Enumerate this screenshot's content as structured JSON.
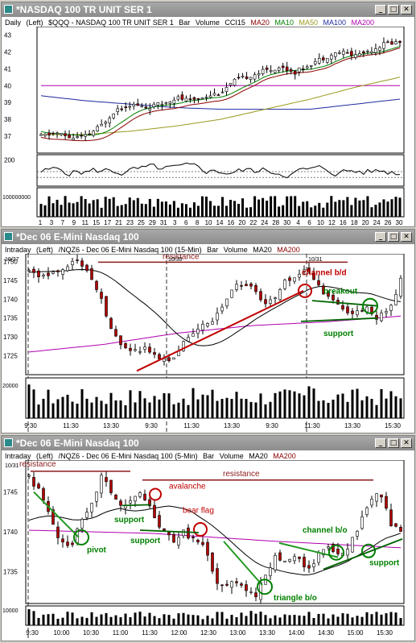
{
  "colors": {
    "up": "#ffffff",
    "down": "#b00000",
    "wick": "#000000",
    "ma20": "#8b0000",
    "ma10": "#008000",
    "ma50": "#9a9a1e",
    "ma100": "#1e2aa0",
    "ma200": "#b000b0",
    "ann_red": "#c00000",
    "ann_green": "#008000",
    "ann_dark": "#8b1a1a"
  },
  "windows": [
    {
      "title": "*NASDAQ 100 TR UNIT SER 1",
      "header": {
        "period": "Daily",
        "axis": "(Left)",
        "symbol": "$QQQ - NASDAQ 100 TR UNIT SER 1",
        "chart": "Bar",
        "ind1": "Volume",
        "ind2": "CCI15",
        "ma20": "MA20",
        "ma10": "MA10",
        "ma50": "MA50",
        "ma100": "MA100",
        "ma200": "MA200"
      }
    },
    {
      "title": "*Dec 06  E-Mini Nasdaq 100",
      "header": {
        "period": "Intraday",
        "axis": "(Left)",
        "symbol": "/NQZ6 - Dec 06  E-Mini Nasdaq 100 (15-Min)",
        "chart": "Bar",
        "ind1": "Volume",
        "ma20": "MA20",
        "ma200": "MA200"
      }
    },
    {
      "title": "*Dec 06  E-Mini Nasdaq 100",
      "header": {
        "period": "Intraday",
        "axis": "(Left)",
        "symbol": "/NQZ6 - Dec 06  E-Mini Nasdaq 100 (5-Min)",
        "chart": "Bar",
        "ind1": "Volume",
        "ma20": "MA20",
        "ma200": "MA200"
      }
    }
  ],
  "chart_data": [
    {
      "type": "candlestick",
      "panel": "daily-price",
      "ylim": [
        36,
        43.5
      ],
      "yticks": [
        "43",
        "42",
        "41",
        "40",
        "39",
        "38",
        "37"
      ],
      "xticks": [
        "1",
        "3",
        "7",
        "9",
        "11",
        "15",
        "17",
        "21",
        "23",
        "25",
        "29",
        "31",
        "3",
        "6",
        "8",
        "10",
        "14",
        "16",
        "20",
        "22",
        "24",
        "28",
        "30",
        "4",
        "6",
        "10",
        "12",
        "16",
        "18",
        "20",
        "24",
        "26",
        "30"
      ],
      "series": [
        "MA20",
        "MA10",
        "MA50",
        "MA100",
        "MA200"
      ]
    },
    {
      "type": "line",
      "panel": "daily-cci",
      "yticks": [
        "200"
      ]
    },
    {
      "type": "bar",
      "panel": "daily-volume",
      "yticks": [
        "100000000"
      ]
    },
    {
      "type": "candlestick",
      "panel": "15min-price",
      "ylim": [
        1720,
        1752
      ],
      "yticks": [
        "1750",
        "1745",
        "1740",
        "1735",
        "1730",
        "1725"
      ],
      "xticks": [
        "9:30",
        "11:30",
        "13:30",
        "9:30",
        "11:30",
        "13:30",
        "9:30",
        "11:30",
        "13:30",
        "15:30"
      ],
      "date_labels": [
        "10/27",
        "10/30",
        "10/31"
      ],
      "series": [
        "MA20",
        "MA200"
      ],
      "annotations": [
        "resistance",
        "channel b/d",
        "breakout",
        "support"
      ],
      "volume_ytick": "20000"
    },
    {
      "type": "candlestick",
      "panel": "5min-price",
      "ylim": [
        1731,
        1749
      ],
      "yticks": [
        "1745",
        "1740",
        "1735"
      ],
      "xticks": [
        "9:30",
        "10:00",
        "10:30",
        "11:00",
        "11:30",
        "12:00",
        "12:30",
        "13:00",
        "13:30",
        "14:00",
        "14:30",
        "15:00",
        "15:30"
      ],
      "date_labels": [
        "10/31"
      ],
      "series": [
        "MA20",
        "MA200"
      ],
      "annotations": [
        "resistance",
        "resistance",
        "avalanche",
        "support",
        "bear flag",
        "pivot",
        "support",
        "channel b/o",
        "triangle b/o",
        "support"
      ],
      "volume_ytick": "10000"
    }
  ]
}
